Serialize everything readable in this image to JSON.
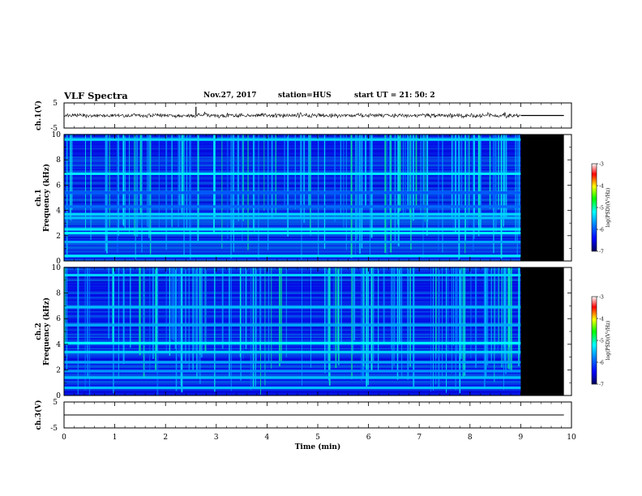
{
  "header": {
    "title": "VLF Spectra",
    "date": "Nov.27, 2017",
    "station": "station=HUS",
    "start": "start  UT  =   21: 50: 2"
  },
  "colors": {
    "background": "#ffffff",
    "axis": "#000000",
    "no_data": "#000000",
    "colorbar": [
      "#00005a",
      "#0000ff",
      "#007fff",
      "#00ffff",
      "#00ff00",
      "#ffff00",
      "#ff0000",
      "#ffffff"
    ]
  },
  "chart_data": [
    {
      "type": "line",
      "panel": "ch1-waveform",
      "ylabel": "ch.1(V)",
      "ylim": [
        -5,
        5
      ],
      "yticks": [
        5,
        -5
      ],
      "xlim": [
        0,
        10
      ],
      "data_end_min": 9.0,
      "x": [
        0.0,
        0.5,
        1.0,
        1.5,
        2.0,
        2.5,
        2.6,
        3.0,
        3.5,
        4.0,
        4.5,
        5.0,
        5.5,
        6.0,
        6.5,
        7.0,
        7.5,
        8.0,
        8.5,
        9.0,
        9.85
      ],
      "y": [
        0.0,
        0.0,
        0.0,
        0.0,
        0.0,
        0.0,
        3.5,
        0.0,
        0.0,
        0.0,
        0.0,
        0.0,
        0.0,
        0.0,
        0.0,
        0.0,
        0.0,
        0.0,
        0.0,
        0.0,
        0.0
      ]
    },
    {
      "type": "heatmap",
      "panel": "ch1-spectrogram",
      "ylabel_line1": "ch.1",
      "ylabel_line2": "Frequency  (kHz)",
      "ylim": [
        0,
        10
      ],
      "yticks": [
        0,
        2,
        4,
        6,
        8,
        10
      ],
      "xlim": [
        0,
        10
      ],
      "data_end_min": 9.0,
      "no_data_end_min": 9.85,
      "colorbar_label": "log(PSD)(V²/Hz)",
      "colorbar_ticks": [
        -3,
        -4,
        -5,
        -6,
        -7
      ],
      "colorbar_range": [
        -7,
        -3
      ],
      "bands_khz": [
        0.4,
        1.5,
        2.2,
        2.5,
        3.4,
        3.7,
        4.3,
        5.4,
        6.9,
        9.6
      ],
      "band_log_psd": [
        -5.3,
        -5.6,
        -5.2,
        -5.3,
        -5.5,
        -5.4,
        -5.9,
        -6.0,
        -5.3,
        -5.4
      ]
    },
    {
      "type": "heatmap",
      "panel": "ch2-spectrogram",
      "ylabel_line1": "ch.2",
      "ylabel_line2": "Frequency  (kHz)",
      "ylim": [
        0,
        10
      ],
      "yticks": [
        0,
        2,
        4,
        6,
        8,
        10
      ],
      "xlim": [
        0,
        10
      ],
      "data_end_min": 9.0,
      "no_data_end_min": 9.85,
      "colorbar_label": "log(PSD)(V²/Hz)",
      "colorbar_ticks": [
        -3,
        -4,
        -5,
        -6,
        -7
      ],
      "colorbar_range": [
        -7,
        -3
      ],
      "bands_khz": [
        0.6,
        1.4,
        1.9,
        2.6,
        3.4,
        4.1,
        5.5,
        6.9,
        9.4
      ],
      "band_log_psd": [
        -5.5,
        -5.5,
        -5.7,
        -5.6,
        -5.4,
        -5.2,
        -5.6,
        -5.5,
        -5.4
      ]
    },
    {
      "type": "line",
      "panel": "ch3-waveform",
      "ylabel": "ch.3(V)",
      "ylim": [
        -5,
        5
      ],
      "yticks": [
        5,
        -5
      ],
      "xlim": [
        0,
        10
      ],
      "x": [
        0,
        9.85
      ],
      "y": [
        0,
        0
      ]
    }
  ],
  "xaxis": {
    "label": "Time  (min)",
    "ticks": [
      0,
      1,
      2,
      3,
      4,
      5,
      6,
      7,
      8,
      9,
      10
    ]
  }
}
